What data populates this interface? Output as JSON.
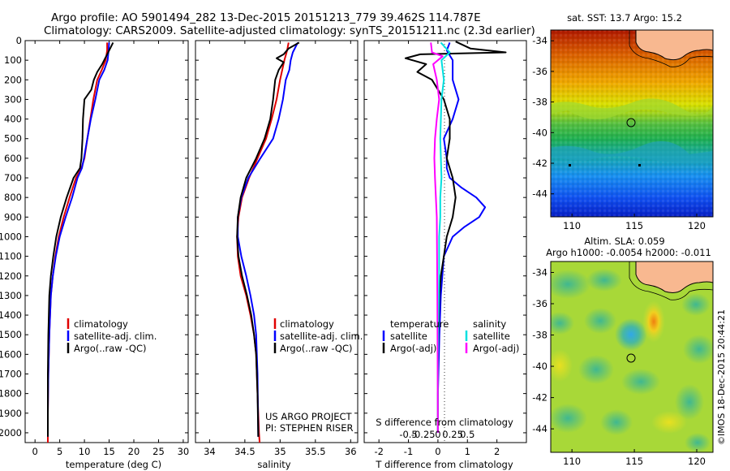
{
  "header": {
    "line1": "Argo profile: AO 5901494_282 13-Dec-2015 20151213_779 39.462S 114.787E",
    "line2": "Climatology: CARS2009. Satellite-adjusted climatology: synTS_20151211.nc (2.3d earlier)"
  },
  "colors": {
    "climatology": "#e00000",
    "satellite": "#0000ff",
    "argo": "#000000",
    "sat_salinity": "#00e0e0",
    "argo_salinity": "#ff00ff"
  },
  "chart_data": [
    {
      "type": "line",
      "panel": "temperature",
      "xlabel": "temperature (deg C)",
      "ylabel": "",
      "xlim": [
        -2,
        31
      ],
      "ylim": [
        2050,
        0
      ],
      "xticks": [
        "0",
        "5",
        "10",
        "15",
        "20",
        "25",
        "30"
      ],
      "yticks": [
        "0",
        "100",
        "200",
        "300",
        "400",
        "500",
        "600",
        "700",
        "800",
        "900",
        "1000",
        "1100",
        "1200",
        "1300",
        "1400",
        "1500",
        "1600",
        "1700",
        "1800",
        "1900",
        "2000"
      ],
      "legend": [
        "climatology",
        "satellite-adj. clim.",
        "Argo(..raw -QC)"
      ],
      "series": [
        {
          "name": "climatology",
          "x": [
            14.6,
            14.6,
            14.3,
            13.5,
            12.6,
            11.8,
            11.2,
            10.6,
            10.0,
            9.4,
            8.3,
            7.0,
            5.8,
            4.8,
            4.1,
            3.6,
            3.2,
            2.9,
            2.7,
            2.6,
            2.6,
            2.6
          ],
          "y": [
            10,
            50,
            100,
            150,
            200,
            300,
            400,
            500,
            600,
            650,
            700,
            800,
            900,
            1000,
            1100,
            1200,
            1300,
            1500,
            1700,
            1900,
            2000,
            2050
          ]
        },
        {
          "name": "satellite-adj. clim.",
          "x": [
            15.0,
            14.9,
            14.7,
            14.0,
            13.0,
            12.2,
            11.3,
            10.6,
            9.9,
            9.5,
            8.6,
            7.5,
            6.2,
            5.0,
            4.2,
            3.6,
            3.2,
            2.9,
            2.7,
            2.6,
            2.6
          ],
          "y": [
            10,
            50,
            100,
            150,
            200,
            300,
            400,
            500,
            600,
            650,
            700,
            800,
            900,
            1000,
            1100,
            1200,
            1300,
            1500,
            1700,
            1900,
            2020
          ]
        },
        {
          "name": "Argo(..raw -QC)",
          "x": [
            15.8,
            15.2,
            14.4,
            13.6,
            12.6,
            11.9,
            11.4,
            10.0,
            9.7,
            9.6,
            9.4,
            9.1,
            7.8,
            6.4,
            5.2,
            4.3,
            3.7,
            3.2,
            2.9,
            2.7,
            2.6,
            2.6,
            2.6
          ],
          "y": [
            10,
            40,
            80,
            120,
            160,
            200,
            250,
            300,
            400,
            500,
            600,
            650,
            700,
            800,
            900,
            1000,
            1100,
            1200,
            1300,
            1500,
            1700,
            1900,
            2020
          ]
        }
      ]
    },
    {
      "type": "line",
      "panel": "salinity",
      "xlabel": "salinity",
      "xlim": [
        33.8,
        36.1
      ],
      "ylim": [
        2050,
        0
      ],
      "xticks": [
        "34",
        "34.5",
        "35",
        "35.5",
        "36"
      ],
      "legend": [
        "climatology",
        "satellite-adj. clim.",
        "Argo(..raw -QC)"
      ],
      "annotation": [
        "US ARGO PROJECT",
        "PI: STEPHEN RISER"
      ],
      "series": [
        {
          "name": "climatology",
          "x": [
            35.12,
            35.1,
            35.06,
            35.0,
            34.95,
            34.88,
            34.8,
            34.68,
            34.56,
            34.46,
            34.41,
            34.39,
            34.4,
            34.44,
            34.52,
            34.58,
            34.63,
            34.66,
            34.68,
            34.7,
            34.71
          ],
          "y": [
            10,
            50,
            100,
            200,
            300,
            400,
            500,
            600,
            700,
            800,
            900,
            1000,
            1100,
            1200,
            1300,
            1400,
            1500,
            1600,
            1800,
            2000,
            2050
          ]
        },
        {
          "name": "satellite-adj. clim.",
          "x": [
            35.25,
            35.18,
            35.15,
            35.13,
            35.08,
            35.04,
            34.98,
            34.9,
            34.72,
            34.55,
            34.45,
            34.4,
            34.4,
            34.45,
            34.52,
            34.58,
            34.63,
            34.66,
            34.68,
            34.69
          ],
          "y": [
            10,
            60,
            100,
            150,
            200,
            300,
            400,
            500,
            600,
            700,
            800,
            900,
            1000,
            1100,
            1200,
            1300,
            1400,
            1500,
            1700,
            2020
          ]
        },
        {
          "name": "Argo(..raw -QC)",
          "x": [
            35.27,
            35.12,
            35.05,
            34.95,
            35.05,
            34.98,
            34.93,
            34.9,
            34.86,
            34.78,
            34.66,
            34.52,
            34.44,
            34.4,
            34.39,
            34.41,
            34.46,
            34.53,
            34.59,
            34.63,
            34.66,
            34.68,
            34.69
          ],
          "y": [
            10,
            40,
            70,
            90,
            110,
            150,
            200,
            300,
            400,
            500,
            600,
            700,
            800,
            900,
            1000,
            1100,
            1200,
            1300,
            1400,
            1500,
            1600,
            1800,
            2020
          ]
        }
      ]
    },
    {
      "type": "line",
      "panel": "difference",
      "xlabel": "T difference from climatology",
      "x2label": "S difference from climatology",
      "xlim": [
        -2.5,
        3.0
      ],
      "ylim": [
        2050,
        0
      ],
      "xticks": [
        "-2",
        "-1",
        "0",
        "1",
        "2"
      ],
      "x2ticks": [
        "-0.5",
        "-0.25",
        "0",
        "0.25",
        "0.5"
      ],
      "legend_groups": [
        {
          "title": "temperature",
          "items": [
            "satellite",
            "Argo(-adj)"
          ]
        },
        {
          "title": "salinity",
          "items": [
            "satellite",
            "Argo(-adj)"
          ]
        }
      ],
      "series": [
        {
          "name": "T satellite",
          "x": [
            0.4,
            0.3,
            0.5,
            0.5,
            0.7,
            0.5,
            0.2,
            0.3,
            0.3,
            0.4,
            0.8,
            1.3,
            1.6,
            1.4,
            0.9,
            0.5,
            0.2,
            0.1,
            0.05,
            0.0,
            0.0
          ],
          "y": [
            10,
            50,
            100,
            200,
            300,
            400,
            500,
            600,
            650,
            700,
            750,
            800,
            850,
            900,
            950,
            1000,
            1100,
            1300,
            1500,
            1800,
            2000
          ]
        },
        {
          "name": "T Argo(-adj)",
          "x": [
            0.6,
            1.1,
            2.3,
            -0.6,
            -1.1,
            -0.4,
            -0.7,
            -0.2,
            0.2,
            0.4,
            0.4,
            0.3,
            0.5,
            0.6,
            0.5,
            0.3,
            0.2,
            0.1,
            0.05,
            0.0,
            0.0
          ],
          "y": [
            5,
            40,
            60,
            70,
            90,
            120,
            160,
            200,
            300,
            400,
            500,
            600,
            700,
            800,
            900,
            1000,
            1100,
            1200,
            1300,
            1600,
            2000
          ]
        },
        {
          "name": "S satellite",
          "x": [
            0.05,
            0.2,
            0.06,
            0.1,
            0.06,
            0.04,
            0.06,
            0.04,
            0.04,
            0.02,
            0.02,
            0.0,
            0.0
          ],
          "y": [
            10,
            60,
            100,
            200,
            300,
            500,
            700,
            800,
            900,
            1000,
            1200,
            1600,
            2000
          ]
        },
        {
          "name": "S Argo(-adj)",
          "x": [
            -0.12,
            -0.1,
            0.08,
            -0.08,
            -0.02,
            0.02,
            -0.02,
            -0.05,
            -0.06,
            -0.05,
            -0.02,
            -0.01,
            0.0
          ],
          "y": [
            10,
            60,
            80,
            120,
            200,
            300,
            400,
            500,
            600,
            700,
            900,
            1300,
            2000
          ]
        }
      ]
    },
    {
      "type": "heatmap",
      "panel": "sst-map",
      "title": "sat. SST: 13.7  Argo: 15.2",
      "xlim": [
        108.3,
        121.3
      ],
      "ylim": [
        -45.5,
        -33.3
      ],
      "xticks": [
        "110",
        "115",
        "120"
      ],
      "yticks": [
        "-34",
        "-36",
        "-38",
        "-40",
        "-42",
        "-44"
      ],
      "argo_position": [
        114.787,
        -39.462
      ]
    },
    {
      "type": "heatmap",
      "panel": "sla-map",
      "title": [
        "Altim. SLA: 0.059",
        "Argo h1000: -0.0054 h2000: -0.011"
      ],
      "xlim": [
        108.3,
        121.3
      ],
      "ylim": [
        -45.5,
        -33.3
      ],
      "xticks": [
        "110",
        "115",
        "120"
      ],
      "yticks": [
        "-34",
        "-36",
        "-38",
        "-40",
        "-42",
        "-44"
      ],
      "argo_position": [
        114.787,
        -39.462
      ]
    }
  ],
  "credit": "©IMOS 18-Dec-2015 20:44:21"
}
